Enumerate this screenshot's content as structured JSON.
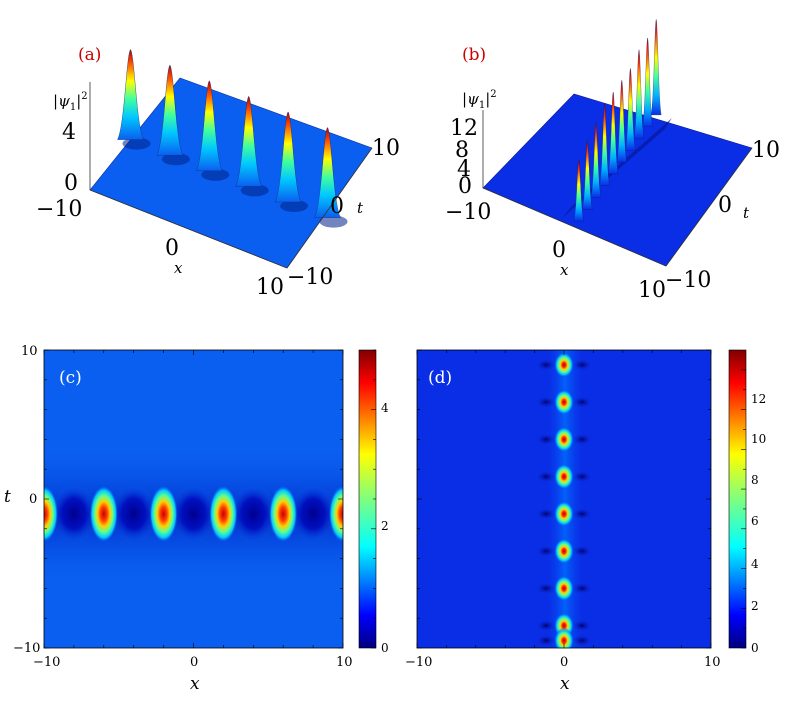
{
  "colors": {
    "jet": [
      "#00007f",
      "#0000ff",
      "#007fff",
      "#00ffff",
      "#7fff7f",
      "#ffff00",
      "#ff7f00",
      "#ff0000",
      "#7f0000"
    ],
    "background_c": "#0a5ff0",
    "background_d": "#0a2de6",
    "panel_label": "#cc0000"
  },
  "panels": {
    "a": {
      "label": "(a)",
      "zlabel_html": "|ψ1|²",
      "zticks": [
        "4",
        "0"
      ],
      "xticks": [
        "−10",
        "0",
        "10"
      ],
      "xlabel": "x",
      "tticks": [
        "10",
        "0",
        "−10"
      ],
      "tlabel": "t"
    },
    "b": {
      "label": "(b)",
      "zlabel_html": "|ψ1|²",
      "zticks": [
        "12",
        "8",
        "4",
        "0"
      ],
      "xticks": [
        "−10",
        "0",
        "10"
      ],
      "xlabel": "x",
      "tticks": [
        "10",
        "0",
        "−10"
      ],
      "tlabel": "t"
    },
    "c": {
      "label": "(c)",
      "xlabel": "x",
      "ylabel": "t"
    },
    "d": {
      "label": "(d)",
      "xlabel": "x"
    }
  },
  "chart_data": [
    {
      "id": "a",
      "type": "surface3d",
      "x_range": [
        -10,
        10
      ],
      "t_range": [
        -10,
        10
      ],
      "z_range": [
        0,
        4
      ],
      "background_level": 1,
      "peaks": [
        {
          "x": -10,
          "t": -1,
          "z": 4.2
        },
        {
          "x": -6,
          "t": -1,
          "z": 4.2
        },
        {
          "x": -2,
          "t": -1,
          "z": 4.2
        },
        {
          "x": 2,
          "t": -1,
          "z": 4.2
        },
        {
          "x": 6,
          "t": -1,
          "z": 4.2
        },
        {
          "x": 10,
          "t": -1,
          "z": 4.2
        }
      ]
    },
    {
      "id": "b",
      "type": "surface3d",
      "x_range": [
        -10,
        10
      ],
      "t_range": [
        -10,
        10
      ],
      "z_range": [
        0,
        12
      ],
      "background_level": 1,
      "peaks": [
        {
          "x": 0,
          "t": -9,
          "z": 9
        },
        {
          "x": 0,
          "t": -7,
          "z": 10
        },
        {
          "x": 0,
          "t": -5,
          "z": 11
        },
        {
          "x": 0,
          "t": -3,
          "z": 12
        },
        {
          "x": 0,
          "t": -1,
          "z": 12
        },
        {
          "x": 0,
          "t": 1,
          "z": 12
        },
        {
          "x": 0,
          "t": 3,
          "z": 12
        },
        {
          "x": 0,
          "t": 5,
          "z": 13
        },
        {
          "x": 0,
          "t": 7,
          "z": 13
        },
        {
          "x": 0,
          "t": 9,
          "z": 14
        }
      ]
    },
    {
      "id": "c",
      "type": "heatmap",
      "xlim": [
        -10,
        10
      ],
      "ylim": [
        -10,
        10
      ],
      "xticks": [
        "−10",
        "0",
        "10"
      ],
      "yticks": [
        "10",
        "0",
        "−10"
      ],
      "xlabel": "x",
      "ylabel": "t",
      "background_level": 1.0,
      "dip_level": 0.1,
      "peak_level": 4.8,
      "peaks_x": [
        -10,
        -6,
        -2,
        2,
        6,
        10
      ],
      "peak_t": -1,
      "colorbar": {
        "min": 0,
        "max": 5,
        "ticks": [
          "4",
          "2",
          "0"
        ]
      }
    },
    {
      "id": "d",
      "type": "heatmap",
      "xlim": [
        -10,
        10
      ],
      "ylim": [
        -10,
        10
      ],
      "xticks": [
        "−10",
        "0",
        "10"
      ],
      "xlabel": "x",
      "background_level": 1.0,
      "peak_level": 14,
      "peak_x": 0,
      "peaks_t": [
        9,
        6.5,
        4,
        1.5,
        -1,
        -3.5,
        -6,
        -8.5,
        -9.5
      ],
      "colorbar": {
        "min": 0,
        "max": 15,
        "ticks": [
          "12",
          "10",
          "8",
          "6",
          "4",
          "2",
          "0"
        ]
      }
    }
  ]
}
